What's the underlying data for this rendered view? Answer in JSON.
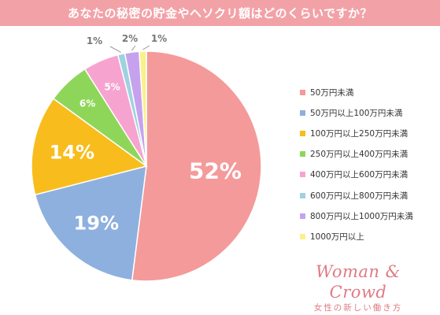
{
  "header": {
    "title": "あなたの秘密の貯金やヘソクリ額はどのくらいですか？"
  },
  "chart_data": {
    "type": "pie",
    "title": "",
    "slices": [
      {
        "label": "50万円未満",
        "value": 52,
        "display": "52%",
        "color": "#f49a9a"
      },
      {
        "label": "50万円以上100万円未満",
        "value": 19,
        "display": "19%",
        "color": "#8eb0de"
      },
      {
        "label": "100万円以上250万円未満",
        "value": 14,
        "display": "14%",
        "color": "#f8bd1c"
      },
      {
        "label": "250万円以上400万円未満",
        "value": 6,
        "display": "6%",
        "color": "#8ed65a"
      },
      {
        "label": "400万円以上600万円未満",
        "value": 5,
        "display": "5%",
        "color": "#f7a3cf"
      },
      {
        "label": "600万円以上800万円未満",
        "value": 1,
        "display": "1%",
        "color": "#9fd2e0"
      },
      {
        "label": "800万円以上1000万円未満",
        "value": 2,
        "display": "2%",
        "color": "#c6a2ee"
      },
      {
        "label": "1000万円以上",
        "value": 1,
        "display": "1%",
        "color": "#fbf18c"
      }
    ],
    "legend_position": "right"
  },
  "brand": {
    "name": "Woman & Crowd",
    "tagline": "女性の新しい働き方"
  }
}
